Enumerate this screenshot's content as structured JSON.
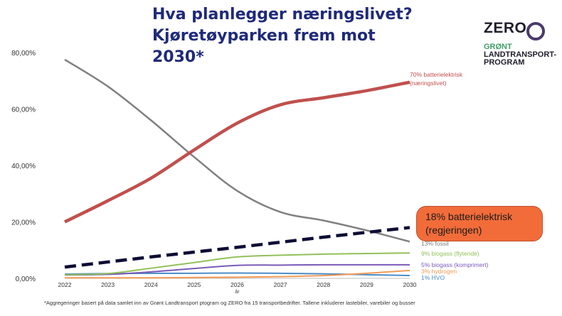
{
  "header": {
    "title_line1": "Hva planlegger næringslivet?",
    "title_line2": "Kjøretøyparken frem mot",
    "title_line3": "2030*"
  },
  "logo": {
    "zero": "ZERO",
    "line1": "GRØNT",
    "line2": "LANDTRANSPORT-",
    "line3": "PROGRAM"
  },
  "callout": {
    "line1": "18% batterielektrisk",
    "line2": "(regjeringen)",
    "color": "#f26c3a"
  },
  "footnote": "*Aggregeringer  basert på data samlet inn av Grønt Landtransport ptogram og ZERO fra 15 transportbedrifter. Tallene inkluderer lastebiler, varebiler og busser",
  "chart_data": {
    "type": "line",
    "xlabel": "år",
    "x": [
      2022,
      2023,
      2024,
      2025,
      2026,
      2027,
      2028,
      2029,
      2030
    ],
    "ylim": [
      0,
      80
    ],
    "yticks": [
      0,
      20,
      40,
      60,
      80
    ],
    "ytick_labels": [
      "0,00%",
      "20,00%",
      "40,00%",
      "60,00%",
      "80,00%"
    ],
    "series": [
      {
        "name": "13% fossil",
        "color": "#808080",
        "width": 2.5,
        "values": [
          77.5,
          68,
          56,
          43,
          31,
          23.5,
          20.5,
          17,
          13
        ]
      },
      {
        "name": "70% batterielektrisk (næringslivet)",
        "color": "#c0504d",
        "width": 4.5,
        "values": [
          20,
          27.5,
          35.5,
          45.5,
          55,
          61.5,
          64,
          66.5,
          69.5
        ]
      },
      {
        "name": "18% batterielektrisk (regjeringen)",
        "color": "#0d0d35",
        "width": 4.5,
        "dashed": true,
        "values": [
          4,
          5.8,
          7.6,
          9.3,
          11,
          12.8,
          14.6,
          16.3,
          18
        ]
      },
      {
        "name": "9% biogass (flytende)",
        "color": "#92c05a",
        "width": 2,
        "values": [
          1.3,
          1.7,
          3.6,
          5.6,
          7.6,
          8.2,
          8.6,
          8.8,
          9
        ]
      },
      {
        "name": "5% biogass (komprimert)",
        "color": "#7a5ab8",
        "width": 2,
        "values": [
          1.2,
          1.4,
          2.3,
          3.5,
          4.6,
          4.7,
          4.8,
          4.8,
          4.8
        ]
      },
      {
        "name": "3% hydrogen",
        "color": "#f39a55",
        "width": 2,
        "values": [
          0.2,
          0.2,
          0.2,
          0.3,
          0.4,
          0.6,
          1,
          1.8,
          2.8
        ]
      },
      {
        "name": "1% HVO",
        "color": "#4a8cc7",
        "width": 2,
        "values": [
          1.5,
          1.7,
          1.8,
          1.8,
          1.9,
          1.8,
          1.6,
          1.3,
          1.0
        ]
      }
    ],
    "labels": {
      "bev": [
        "70% batterielektrisk",
        "(næringslivet)"
      ],
      "fossil": "13% fossil",
      "biogass_flytende": "9% biogass (flytende)",
      "biogass_komprimert": "5% biogass (komprimert)",
      "hydrogen": "3% hydrogen",
      "hvo": "1% HVO"
    }
  }
}
